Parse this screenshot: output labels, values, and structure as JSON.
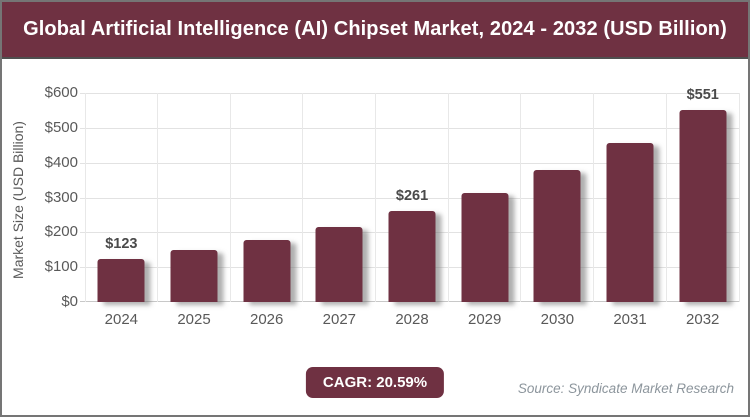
{
  "header": {
    "title": "Global Artificial Intelligence (AI) Chipset Market, 2024 - 2032 (USD Billion)"
  },
  "chart_data": {
    "type": "bar",
    "title": "Global Artificial Intelligence (AI) Chipset Market, 2024 - 2032 (USD Billion)",
    "categories": [
      "2024",
      "2025",
      "2026",
      "2027",
      "2028",
      "2029",
      "2030",
      "2031",
      "2032"
    ],
    "values": [
      123,
      148,
      179,
      216,
      261,
      314,
      378,
      456,
      551
    ],
    "data_labels": [
      "$123",
      "",
      "",
      "",
      "$261",
      "",
      "",
      "",
      "$551"
    ],
    "xlabel": "",
    "ylabel": "Market Size (USD Billion)",
    "ylim": [
      0,
      600
    ],
    "ytick_step": 100,
    "ytick_labels": [
      "$0",
      "$100",
      "$200",
      "$300",
      "$400",
      "$500",
      "$600"
    ],
    "grid": true,
    "legend": false,
    "bar_color": "#6F3142"
  },
  "footer": {
    "cagr_label": "CAGR: 20.59%",
    "source": "Source: Syndicate Market Research"
  },
  "colors": {
    "accent_maroon": "#6F3142",
    "title_text": "#FFFFFF",
    "axis_text": "#595959",
    "bar_label_text": "#4A4A4A",
    "gridline": "#E2E2E2",
    "source_text": "#8C959C",
    "frame_border": "#757575"
  }
}
